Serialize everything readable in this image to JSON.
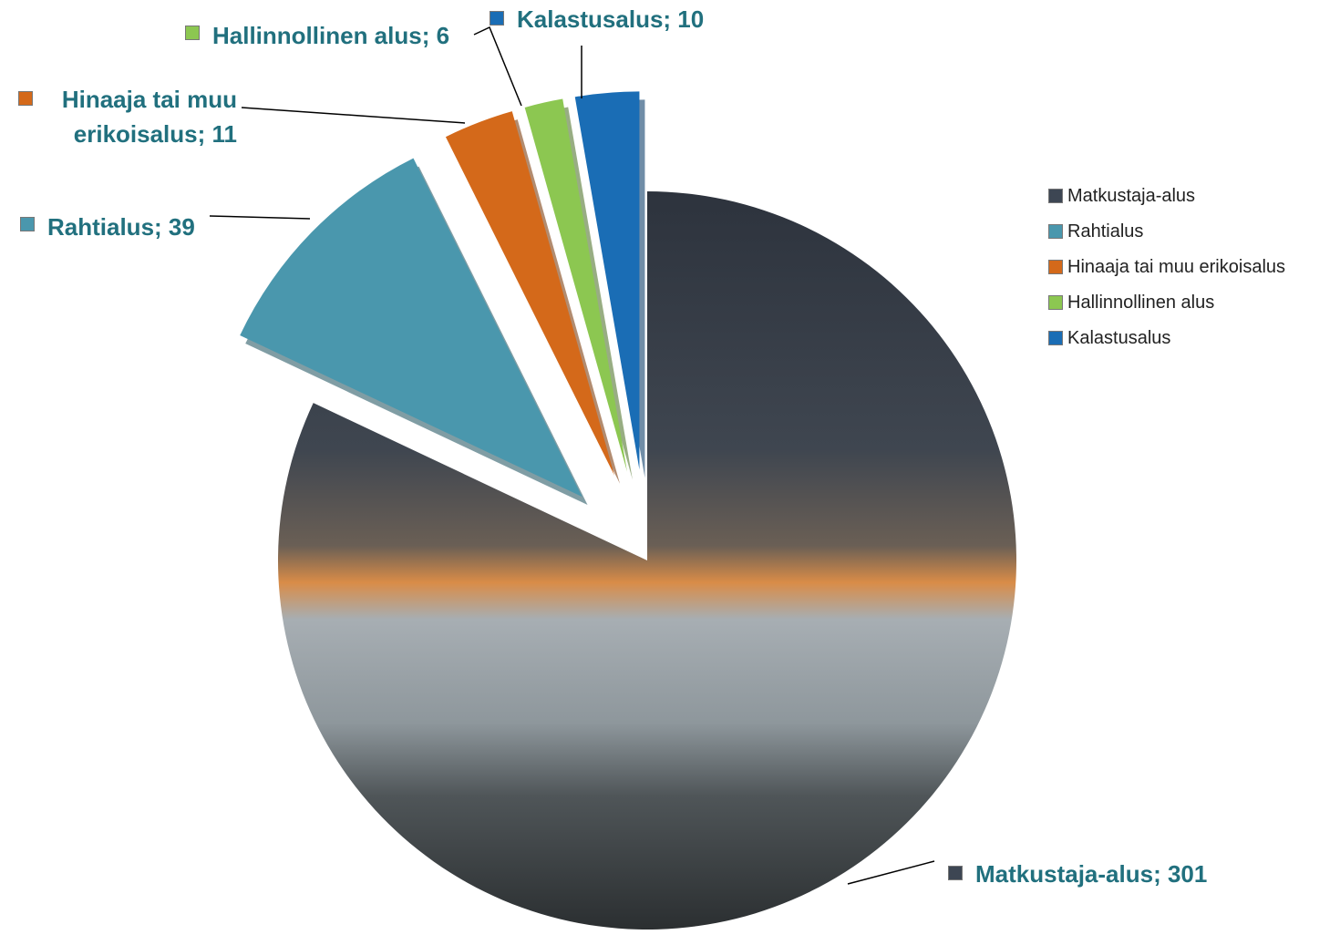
{
  "chart_data": {
    "type": "pie",
    "categories": [
      "Matkustaja-alus",
      "Rahtialus",
      "Hinaaja tai muu erikoisalus",
      "Hallinnollinen alus",
      "Kalastusalus"
    ],
    "values": [
      301,
      39,
      11,
      6,
      10
    ],
    "value_labels": [
      "Matkustaja-alus; 301",
      "Rahtialus; 39",
      "Hinaaja tai muu erikoisalus; 11",
      "Hallinnollinen alus; 6",
      "Kalastusalus; 10"
    ],
    "colors": [
      "#3d4653",
      "#4a97ad",
      "#d4691a",
      "#8cc751",
      "#1a6db5"
    ],
    "legend": "right"
  }
}
